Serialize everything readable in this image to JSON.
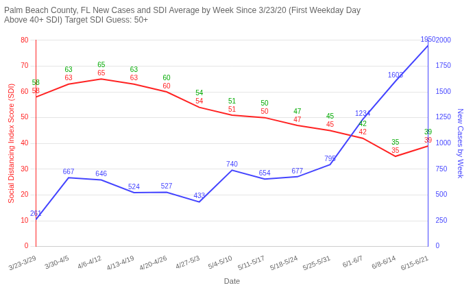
{
  "chart_data": {
    "type": "line",
    "title": "Palm Beach County, FL New Cases and SDI Average by Week Since 3/23/20 (First Weekday Day\nAbove 40+ SDI) Target SDI Guess: 50+",
    "xlabel": "Date",
    "ylabel": "Social Distancing Index Score (SDI)",
    "y2label": "New Cases by Week",
    "categories": [
      "3/23-3/29",
      "3/30-4/5",
      "4/6-4/12",
      "4/13-4/19",
      "4/20-4/26",
      "4/27-5/3",
      "5/4-5/10",
      "5/11-5/17",
      "5/18-5/24",
      "5/25-5/31",
      "6/1-6/7",
      "6/8-6/14",
      "6/15-6/21"
    ],
    "series": [
      {
        "color": "#4444ff",
        "values": [
          261,
          667,
          646,
          524,
          527,
          433,
          740,
          654,
          677,
          795,
          1234,
          1603,
          1950
        ],
        "axis": "y2",
        "data_labels": true,
        "marker": "none",
        "line_style": "solid"
      },
      {
        "color": "#ff2222",
        "values": [
          58,
          63,
          65,
          63,
          60,
          54,
          51,
          50,
          47,
          45,
          42,
          35,
          39
        ],
        "data_labels": true,
        "marker": "none",
        "line_style": "solid"
      },
      {
        "color": "#00aa00",
        "values": [
          58,
          63,
          65,
          63,
          60,
          54,
          51,
          50,
          47,
          45,
          42,
          35,
          39
        ],
        "data_labels": true,
        "marker": "none",
        "line_style": "none"
      }
    ],
    "ylim": [
      0,
      80
    ],
    "yticks": [
      0,
      10,
      20,
      30,
      40,
      50,
      60,
      70,
      80
    ],
    "y2lim": [
      0,
      2000
    ],
    "y2ticks": [
      0,
      250,
      500,
      750,
      1000,
      1250,
      1500,
      1750,
      2000
    ],
    "grid": true
  }
}
